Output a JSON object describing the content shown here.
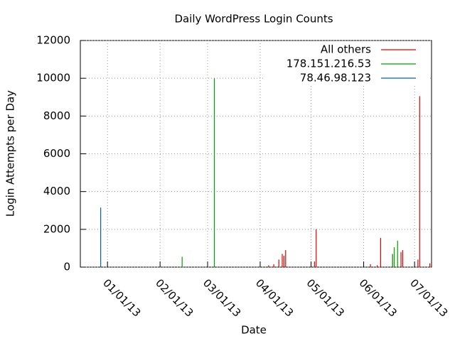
{
  "chart_data": {
    "type": "impulse",
    "title": "Daily WordPress Login Counts",
    "x_label": "Date",
    "y_label": "Login Attempts per Day",
    "xlim": [
      "2012-12-16",
      "2013-07-11"
    ],
    "xticks": [
      {
        "value": "2013-01-01",
        "label": "01/01/13"
      },
      {
        "value": "2013-02-01",
        "label": "02/01/13"
      },
      {
        "value": "2013-03-01",
        "label": "03/01/13"
      },
      {
        "value": "2013-04-01",
        "label": "04/01/13"
      },
      {
        "value": "2013-05-01",
        "label": "05/01/13"
      },
      {
        "value": "2013-06-01",
        "label": "06/01/13"
      },
      {
        "value": "2013-07-01",
        "label": "07/01/13"
      }
    ],
    "ylim": [
      0,
      12000
    ],
    "yticks": [
      0,
      2000,
      4000,
      6000,
      8000,
      10000,
      12000
    ],
    "grid": true,
    "legend": "top-right",
    "series": [
      {
        "name": "All others",
        "color": "#e00000",
        "x": [
          "2013-04-06",
          "2013-04-09",
          "2013-04-12",
          "2013-04-14",
          "2013-04-15",
          "2013-04-16",
          "2013-05-03",
          "2013-05-04",
          "2013-06-05",
          "2013-06-09",
          "2013-06-11",
          "2013-06-18",
          "2013-06-23",
          "2013-06-24",
          "2013-07-03",
          "2013-07-04",
          "2013-07-10"
        ],
        "values": [
          100,
          150,
          400,
          700,
          600,
          900,
          300,
          2000,
          150,
          100,
          1550,
          650,
          800,
          900,
          400,
          9050,
          200
        ]
      },
      {
        "name": "178.151.216.53",
        "color": "#00a000",
        "x": [
          "2013-02-14",
          "2013-03-05",
          "2013-06-18",
          "2013-06-19",
          "2013-06-21"
        ],
        "values": [
          550,
          10000,
          700,
          1050,
          1400
        ]
      },
      {
        "name": "78.46.98.123",
        "color": "#0060ad",
        "x": [
          "2012-12-28"
        ],
        "values": [
          3150
        ]
      }
    ]
  }
}
